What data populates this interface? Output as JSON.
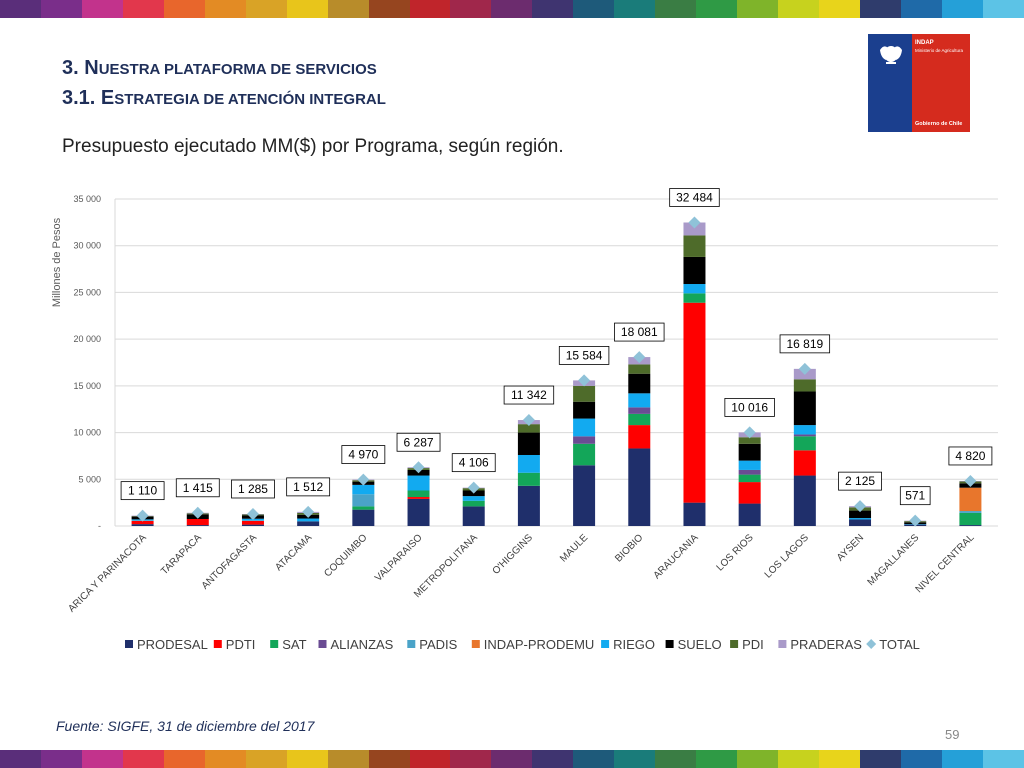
{
  "header": {
    "title_prefix": "3. N",
    "title_rest": "uestra Plataforma de Servicios",
    "subtitle_prefix": "3.1. E",
    "subtitle_rest": "strategia de Atención Integral"
  },
  "logo": {
    "brand": "INDAP",
    "ministry": "Ministerio de Agricultura",
    "government": "Gobierno de Chile"
  },
  "colors": {
    "stripe": [
      "#5a2e7a",
      "#7a2e8a",
      "#c2338c",
      "#e2374c",
      "#e8662c",
      "#e38b24",
      "#d9a326",
      "#e8c51b",
      "#b88c2a",
      "#96451f",
      "#c0252b",
      "#a0274b",
      "#6c2c6e",
      "#3f3470",
      "#1e5a7a",
      "#1a7c7a",
      "#3a7d44",
      "#2f9a45",
      "#7fb42a",
      "#c7d21e",
      "#e8d41b",
      "#2f3c6c",
      "#1f6aa8",
      "#25a0d8",
      "#5cc3e6"
    ],
    "title": "#1f2f59"
  },
  "source": "Fuente: SIGFE, 31 de diciembre del 2017",
  "page_number": "59",
  "chart_data": {
    "type": "bar",
    "stacked": true,
    "title": "Presupuesto ejecutado MM($) por Programa, según región.",
    "ylabel": "Millones de Pesos",
    "ylim": [
      0,
      35000
    ],
    "yticks": [
      "-",
      "5 000",
      "10 000",
      "15 000",
      "20 000",
      "25 000",
      "30 000",
      "35 000"
    ],
    "grid": true,
    "legend_position": "bottom",
    "categories": [
      "ARICA Y PARINACOTA",
      "TARAPACA",
      "ANTOFAGASTA",
      "ATACAMA",
      "COQUIMBO",
      "VALPARAISO",
      "METROPOLITANA",
      "O'HIGGINS",
      "MAULE",
      "BIOBIO",
      "ARAUCANIA",
      "LOS RIOS",
      "LOS LAGOS",
      "AYSEN",
      "MAGALLANES",
      "NIVEL CENTRAL"
    ],
    "series": [
      {
        "name": "PRODESAL",
        "color": "#1f2f6b",
        "values": [
          200,
          100,
          150,
          500,
          1750,
          2900,
          2100,
          4300,
          6500,
          8300,
          2500,
          2400,
          5400,
          700,
          150,
          100
        ]
      },
      {
        "name": "PDTI",
        "color": "#ff0000",
        "values": [
          350,
          650,
          400,
          0,
          0,
          200,
          0,
          0,
          0,
          2500,
          21400,
          2300,
          2700,
          0,
          0,
          0
        ]
      },
      {
        "name": "SAT",
        "color": "#13a659",
        "values": [
          0,
          0,
          0,
          0,
          350,
          700,
          600,
          1400,
          2300,
          1200,
          1000,
          800,
          1500,
          0,
          0,
          1300
        ]
      },
      {
        "name": "ALIANZAS",
        "color": "#6a4c93",
        "values": [
          0,
          0,
          0,
          0,
          0,
          0,
          0,
          0,
          800,
          700,
          0,
          500,
          200,
          0,
          0,
          0
        ]
      },
      {
        "name": "PADIS",
        "color": "#4aa3c8",
        "values": [
          50,
          0,
          50,
          0,
          1300,
          0,
          0,
          0,
          0,
          0,
          0,
          0,
          0,
          0,
          0,
          200
        ]
      },
      {
        "name": "INDAP-PRODEMU",
        "color": "#e8762c",
        "values": [
          0,
          0,
          0,
          0,
          0,
          0,
          0,
          0,
          0,
          0,
          0,
          0,
          0,
          0,
          0,
          2500
        ]
      },
      {
        "name": "RIEGO",
        "color": "#12aaf0",
        "values": [
          110,
          0,
          180,
          300,
          1000,
          1600,
          500,
          1900,
          1900,
          1500,
          1000,
          1000,
          1000,
          150,
          50,
          0
        ]
      },
      {
        "name": "SUELO",
        "color": "#000000",
        "values": [
          300,
          500,
          350,
          400,
          350,
          600,
          600,
          2400,
          1800,
          2100,
          2900,
          1800,
          3600,
          800,
          200,
          470
        ]
      },
      {
        "name": "PDI",
        "color": "#4e6b2a",
        "values": [
          50,
          100,
          100,
          200,
          150,
          200,
          250,
          900,
          1700,
          1000,
          2300,
          700,
          1300,
          350,
          120,
          200
        ]
      },
      {
        "name": "PRADERAS",
        "color": "#a99ac9",
        "values": [
          50,
          65,
          55,
          112,
          70,
          87,
          56,
          442,
          584,
          781,
          1384,
          516,
          1119,
          125,
          51,
          50
        ]
      }
    ],
    "totals": [
      1110,
      1415,
      1285,
      1512,
      4970,
      6287,
      4106,
      11342,
      15584,
      18081,
      32484,
      10016,
      16819,
      2125,
      571,
      4820
    ],
    "total_labels": [
      "1 110",
      "1 415",
      "1 285",
      "1 512",
      "4 970",
      "6 287",
      "4 106",
      "11 342",
      "15 584",
      "18 081",
      "32 484",
      "10 016",
      "16 819",
      "2 125",
      "571",
      "4 820"
    ],
    "total_series": {
      "name": "TOTAL",
      "color": "#8fc2d8"
    }
  }
}
